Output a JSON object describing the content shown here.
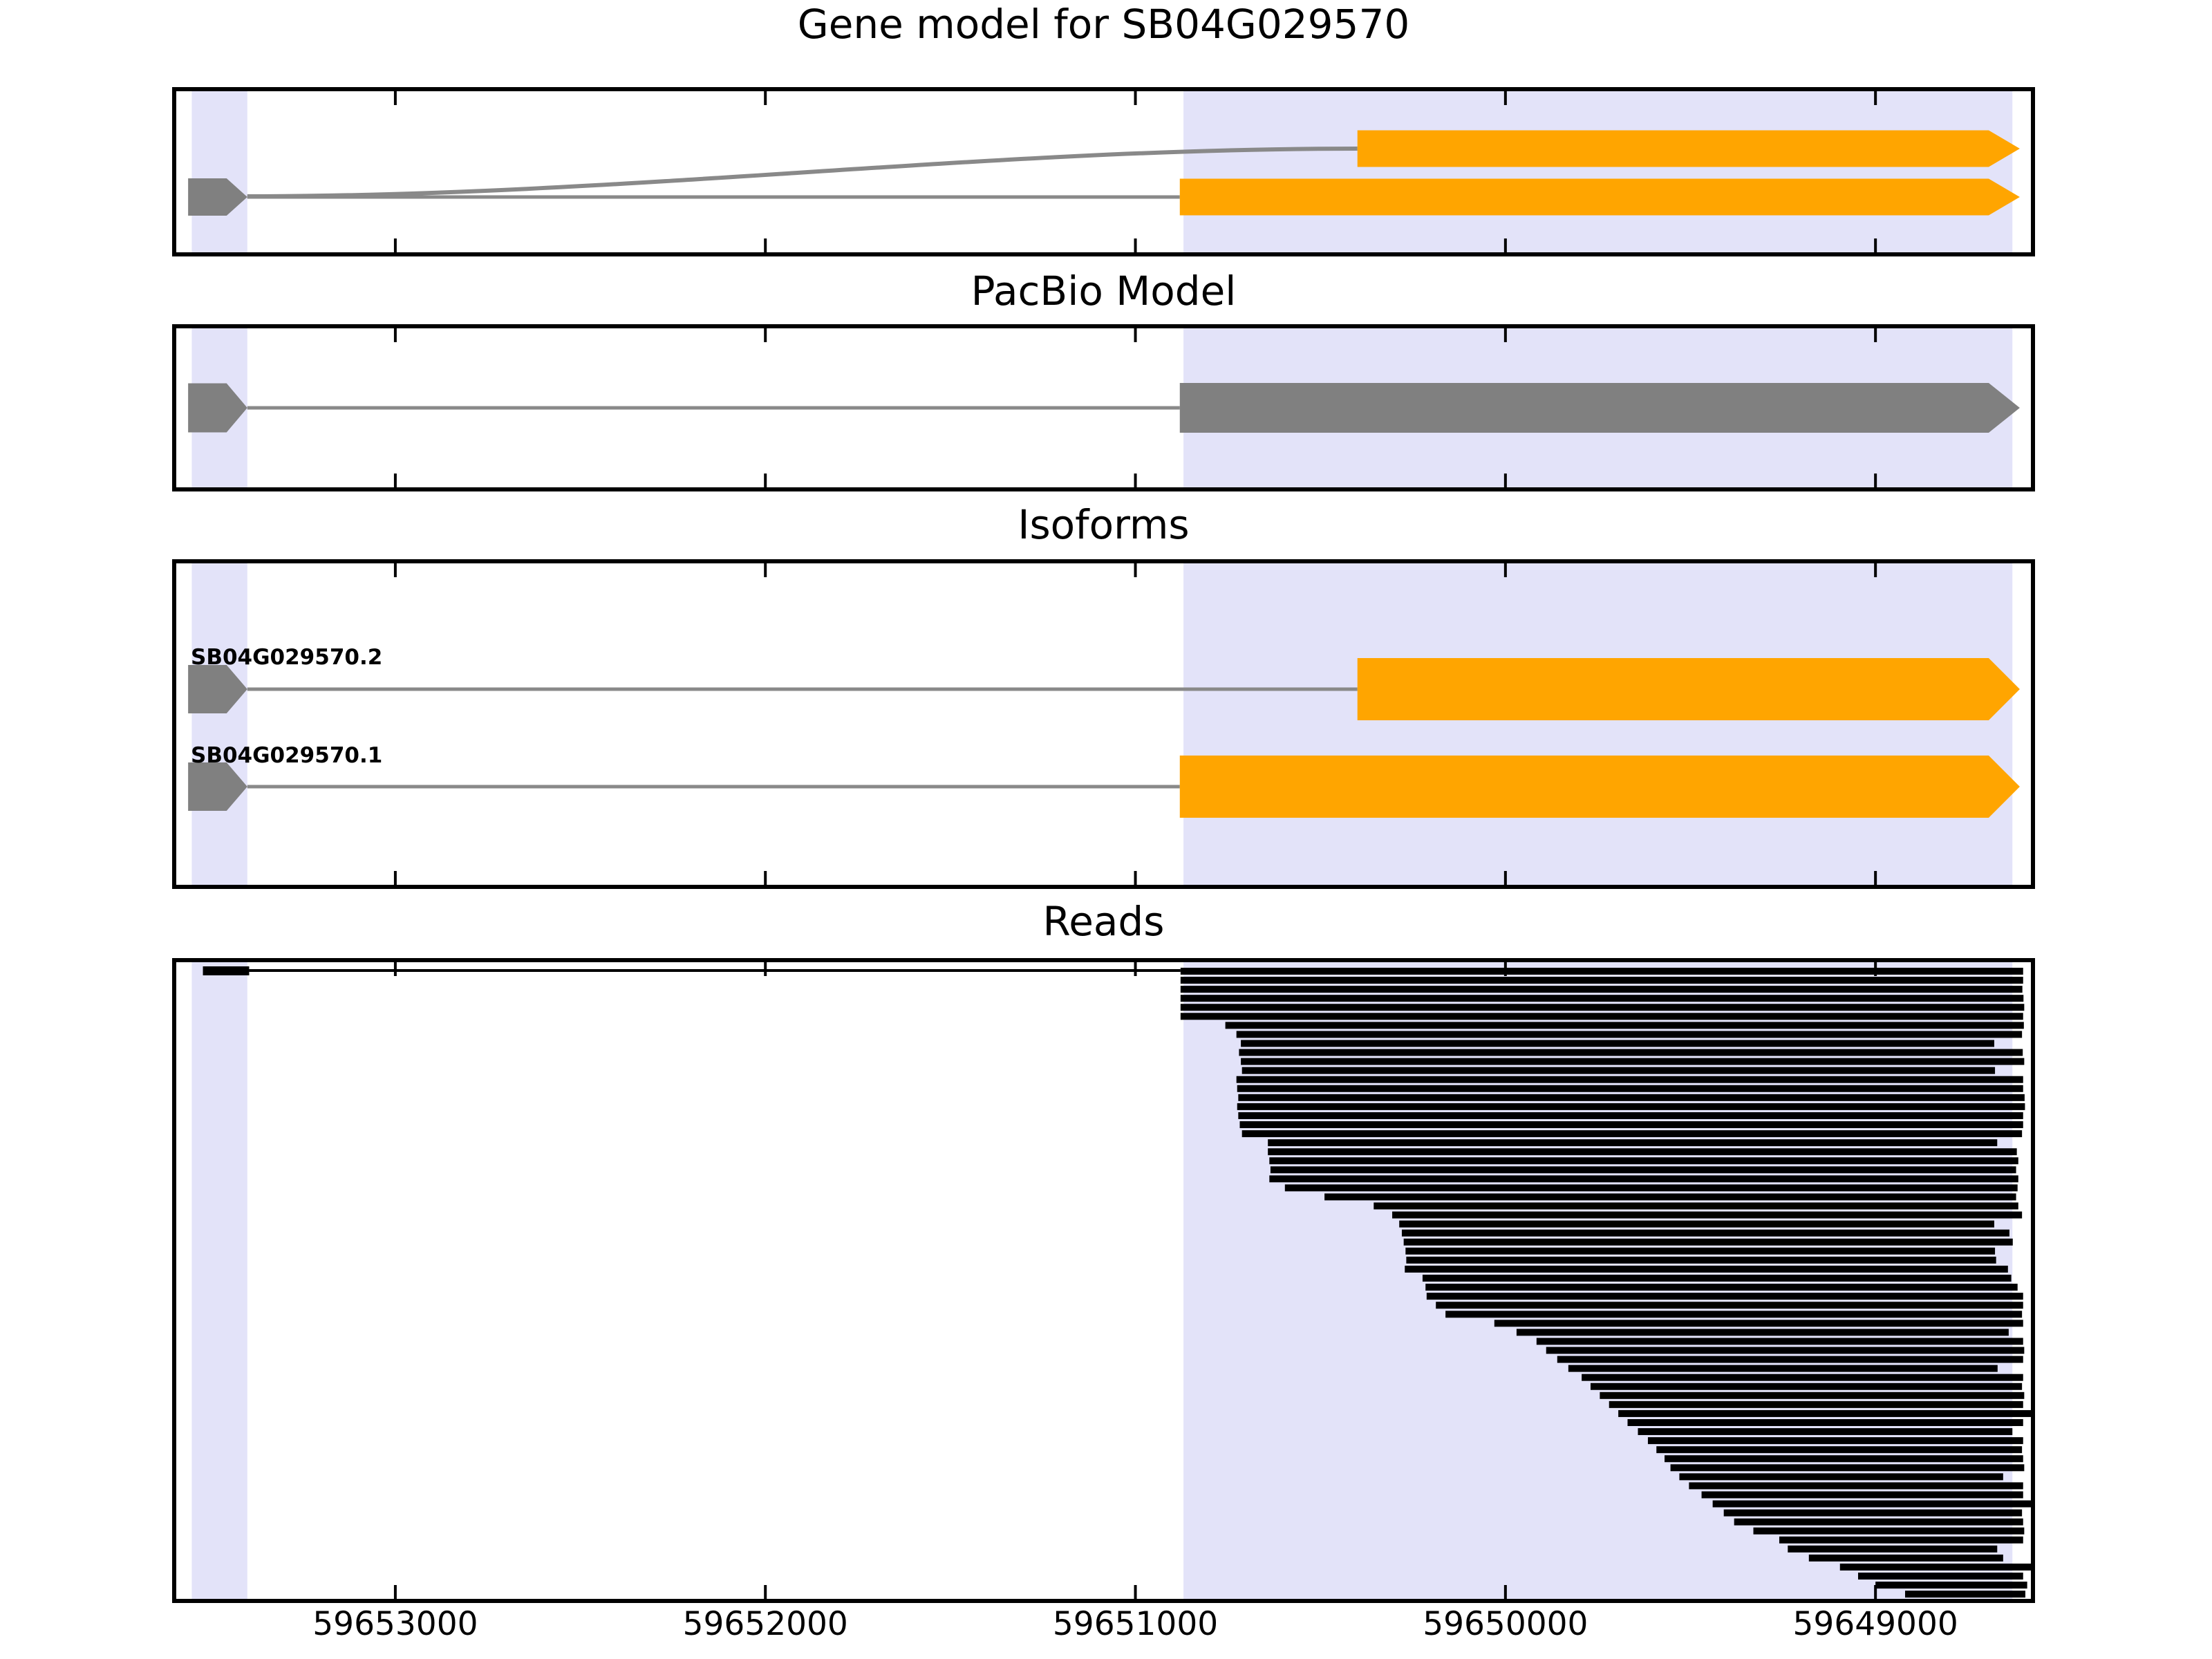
{
  "figure": {
    "panels": [
      {
        "title": "Gene model for SB04G029570"
      },
      {
        "title": "PacBio Model"
      },
      {
        "title": "Isoforms"
      },
      {
        "title": "Reads"
      }
    ]
  },
  "axis": {
    "reversed": true,
    "tick_values": [
      59653000,
      59652000,
      59651000,
      59650000,
      59649000
    ],
    "tick_labels": [
      "59653000",
      "59652000",
      "59651000",
      "59650000",
      "59649000"
    ]
  },
  "colors": {
    "exon": "#FFA500",
    "model": "#808080",
    "intron_line": "#898989",
    "read": "#000000",
    "highlight": "#E3E3F9",
    "frame": "#000000"
  },
  "chart_data": {
    "type": "genome-track",
    "locus": "SB04G029570",
    "x_range": [
      59653592,
      59648580
    ],
    "x_axis_reversed": true,
    "highlight_regions": [
      [
        59653550,
        59653400
      ],
      [
        59650870,
        59648630
      ]
    ],
    "gene_model": {
      "first_exon": [
        59653560,
        59653400
      ],
      "rows": [
        {
          "row": "top",
          "exon": [
            59650400,
            59648610
          ],
          "intron_shape": "curve"
        },
        {
          "row": "bottom",
          "exon": [
            59650880,
            59648610
          ],
          "intron_shape": "straight"
        }
      ]
    },
    "pacbio_model": {
      "first_exon": [
        59653560,
        59653400
      ],
      "exon": [
        59650880,
        59648610
      ]
    },
    "isoforms": [
      {
        "name": "SB04G029570.2",
        "first_exon": [
          59653560,
          59653400
        ],
        "exon": [
          59650400,
          59648610
        ]
      },
      {
        "name": "SB04G029570.1",
        "first_exon": [
          59653560,
          59653400
        ],
        "exon": [
          59650880,
          59648610
        ]
      }
    ],
    "reads": {
      "first_read_left_exon": [
        59653520,
        59653395
      ],
      "spans": [
        [
          59650878,
          59648601
        ],
        [
          59650878,
          59648601
        ],
        [
          59650878,
          59648603
        ],
        [
          59650878,
          59648600
        ],
        [
          59650878,
          59648598
        ],
        [
          59650878,
          59648601
        ],
        [
          59650757,
          59648599
        ],
        [
          59650727,
          59648604
        ],
        [
          59650715,
          59648679
        ],
        [
          59650720,
          59648602
        ],
        [
          59650715,
          59648598
        ],
        [
          59650712,
          59648677
        ],
        [
          59650727,
          59648601
        ],
        [
          59650725,
          59648601
        ],
        [
          59650722,
          59648597
        ],
        [
          59650725,
          59648596
        ],
        [
          59650722,
          59648601
        ],
        [
          59650718,
          59648601
        ],
        [
          59650712,
          59648604
        ],
        [
          59650642,
          59648671
        ],
        [
          59650642,
          59648618
        ],
        [
          59650638,
          59648614
        ],
        [
          59650635,
          59648620
        ],
        [
          59650638,
          59648614
        ],
        [
          59650596,
          59648616
        ],
        [
          59650489,
          59648620
        ],
        [
          59650356,
          59648614
        ],
        [
          59650306,
          59648604
        ],
        [
          59650287,
          59648679
        ],
        [
          59650280,
          59648638
        ],
        [
          59650275,
          59648629
        ],
        [
          59650270,
          59648677
        ],
        [
          59650268,
          59648674
        ],
        [
          59650272,
          59648642
        ],
        [
          59650224,
          59648633
        ],
        [
          59650216,
          59648616
        ],
        [
          59650213,
          59648601
        ],
        [
          59650188,
          59648601
        ],
        [
          59650162,
          59648604
        ],
        [
          59650030,
          59648601
        ],
        [
          59649970,
          59648640
        ],
        [
          59649916,
          59648601
        ],
        [
          59649890,
          59648598
        ],
        [
          59649860,
          59648601
        ],
        [
          59649830,
          59648670
        ],
        [
          59649794,
          59648601
        ],
        [
          59649770,
          59648604
        ],
        [
          59649745,
          59648598
        ],
        [
          59649720,
          59648601
        ],
        [
          59649695,
          59648560
        ],
        [
          59649670,
          59648601
        ],
        [
          59649642,
          59648630
        ],
        [
          59649615,
          59648601
        ],
        [
          59649592,
          59648604
        ],
        [
          59649570,
          59648601
        ],
        [
          59649554,
          59648598
        ],
        [
          59649530,
          59648655
        ],
        [
          59649504,
          59648601
        ],
        [
          59649470,
          59648601
        ],
        [
          59649440,
          59648560
        ],
        [
          59649410,
          59648604
        ],
        [
          59649382,
          59648601
        ],
        [
          59649330,
          59648598
        ],
        [
          59649260,
          59648601
        ],
        [
          59649237,
          59648671
        ],
        [
          59649180,
          59648655
        ],
        [
          59649096,
          59648566
        ],
        [
          59649047,
          59648601
        ],
        [
          59649000,
          59648590
        ],
        [
          59648920,
          59648595
        ]
      ]
    }
  }
}
